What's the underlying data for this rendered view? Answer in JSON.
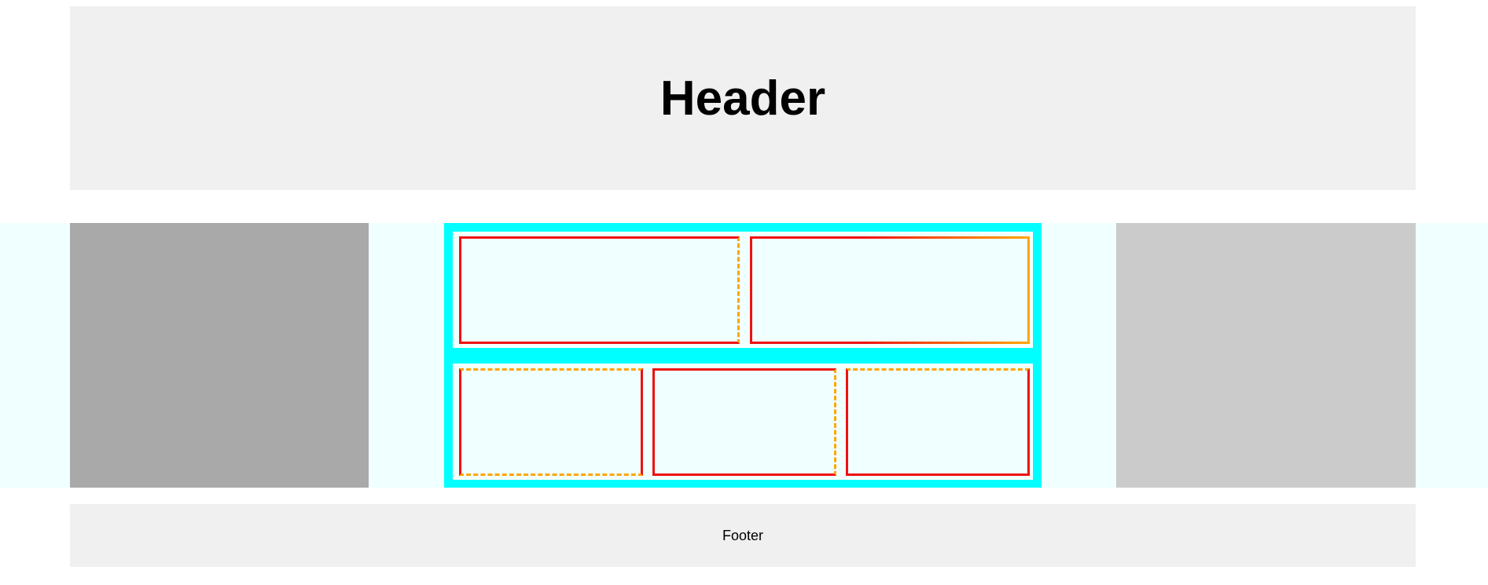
{
  "header": {
    "title": "Header"
  },
  "footer": {
    "text": "Footer"
  },
  "colors": {
    "header_bg": "#f0f0f0",
    "band_bg": "#f0ffff",
    "left_sidebar_bg": "#a9a9a9",
    "right_sidebar_bg": "#cbcbcb",
    "center_bg": "#00ffff",
    "cell_border_solid": "#ee1111",
    "cell_border_dashed": "#ffa500",
    "footer_bg": "#f0f0f0"
  }
}
